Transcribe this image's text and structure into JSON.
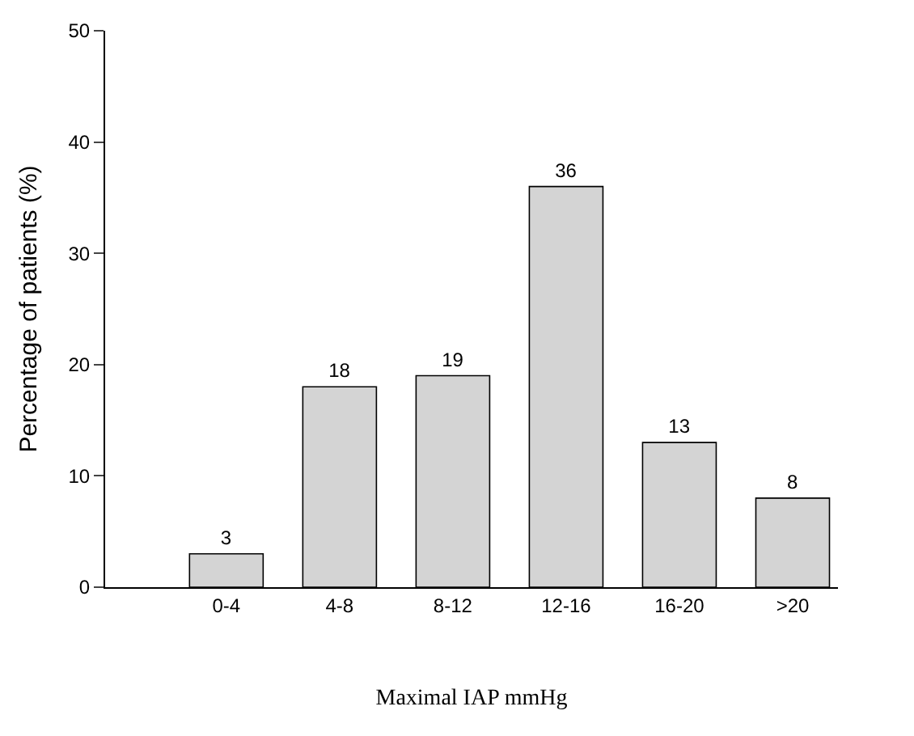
{
  "chart_data": {
    "type": "bar",
    "categories": [
      "0-4",
      "4-8",
      "8-12",
      "12-16",
      "16-20",
      ">20"
    ],
    "values": [
      3,
      18,
      19,
      36,
      13,
      8
    ],
    "color": "#d4d4d4",
    "data_labels": true,
    "xlabel": "Maximal IAP mmHg",
    "ylabel": "Percentage of patients (%)",
    "ylim": [
      0,
      50
    ],
    "yticks": [
      0,
      10,
      20,
      30,
      40,
      50
    ]
  }
}
